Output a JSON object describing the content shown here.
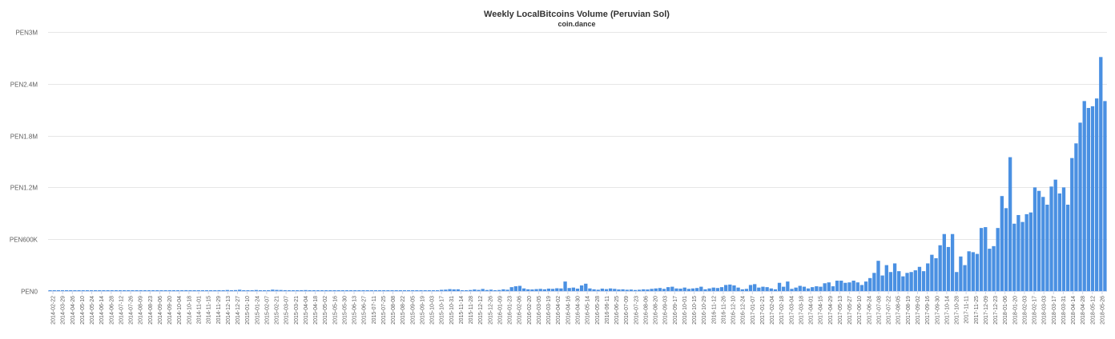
{
  "chart_data": {
    "type": "bar",
    "title": "Weekly LocalBitcoins Volume (Peruvian Sol)",
    "subtitle": "coin.dance",
    "start_date": "2014-02-22",
    "interval_days": 7,
    "ylim": [
      0,
      3000000
    ],
    "yticks": [
      0,
      600000,
      1200000,
      1800000,
      2400000,
      3000000
    ],
    "ytick_labels": [
      "PEN0",
      "PEN600K",
      "PEN1.2M",
      "PEN1.8M",
      "PEN2.4M",
      "PEN3M"
    ],
    "xtick_labels": [
      "2014-02-22",
      "2014-03-29",
      "2014-04-26",
      "2014-05-10",
      "2014-05-24",
      "2014-06-14",
      "2014-06-28",
      "2014-07-12",
      "2014-07-26",
      "2014-08-09",
      "2014-08-23",
      "2014-09-06",
      "2014-09-20",
      "2014-10-04",
      "2014-10-18",
      "2014-11-01",
      "2014-11-15",
      "2014-11-29",
      "2014-12-13",
      "2014-12-27",
      "2015-01-10",
      "2015-01-24",
      "2015-02-07",
      "2015-02-21",
      "2015-03-07",
      "2015-03-21",
      "2015-04-04",
      "2015-04-18",
      "2015-05-02",
      "2015-05-16",
      "2015-05-30",
      "2015-06-13",
      "2015-06-27",
      "2015-07-11",
      "2015-07-25",
      "2015-08-08",
      "2015-08-22",
      "2015-09-05",
      "2015-09-19",
      "2015-10-03",
      "2015-10-17",
      "2015-10-31",
      "2015-11-14",
      "2015-11-28",
      "2015-12-12",
      "2015-12-26",
      "2016-01-09",
      "2016-01-23",
      "2016-02-06",
      "2016-02-20",
      "2016-03-05",
      "2016-03-19",
      "2016-04-02",
      "2016-04-16",
      "2016-04-30",
      "2016-05-14",
      "2016-05-28",
      "2016-06-11",
      "2016-06-25",
      "2016-07-09",
      "2016-07-23",
      "2016-08-06",
      "2016-08-20",
      "2016-09-03",
      "2016-09-17",
      "2016-10-01",
      "2016-10-15",
      "2016-10-29",
      "2016-11-12",
      "2016-11-26",
      "2016-12-10",
      "2016-12-24",
      "2017-01-07",
      "2017-01-21",
      "2017-02-04",
      "2017-02-18",
      "2017-03-04",
      "2017-03-18",
      "2017-04-01",
      "2017-04-15",
      "2017-04-29",
      "2017-05-13",
      "2017-05-27",
      "2017-06-10",
      "2017-06-24",
      "2017-07-08",
      "2017-07-22",
      "2017-08-05",
      "2017-08-19",
      "2017-09-02",
      "2017-09-16",
      "2017-09-30",
      "2017-10-14",
      "2017-10-28",
      "2017-11-11",
      "2017-11-25",
      "2017-12-09",
      "2017-12-23",
      "2018-01-06",
      "2018-01-20",
      "2018-02-03",
      "2018-02-17",
      "2018-03-03",
      "2018-03-17",
      "2018-03-31",
      "2018-04-14",
      "2018-04-28",
      "2018-05-12",
      "2018-05-26"
    ],
    "bar_color": "#4a90e2",
    "values": [
      3000,
      2000,
      2000,
      2000,
      2000,
      3000,
      4000,
      3000,
      3000,
      2000,
      2000,
      4000,
      3000,
      5000,
      4000,
      3000,
      8000,
      6000,
      5000,
      8000,
      6000,
      5000,
      6000,
      7000,
      4000,
      4000,
      5000,
      5000,
      8000,
      6000,
      5000,
      6000,
      4000,
      10000,
      5000,
      5000,
      5000,
      6000,
      7000,
      6000,
      8000,
      10000,
      8000,
      12000,
      7000,
      11000,
      15000,
      9000,
      7000,
      8000,
      12000,
      6000,
      8000,
      10000,
      16000,
      13000,
      12000,
      10000,
      9000,
      9000,
      8000,
      10000,
      11000,
      9000,
      6000,
      5000,
      8000,
      5000,
      6000,
      6000,
      7000,
      6000,
      9000,
      6000,
      6000,
      7000,
      7000,
      6000,
      5000,
      5000,
      7000,
      8000,
      6000,
      6000,
      4000,
      6000,
      7000,
      6000,
      5000,
      5000,
      5000,
      6000,
      7000,
      6000,
      8000,
      14000,
      16000,
      22000,
      19000,
      20000,
      8000,
      8000,
      12000,
      18000,
      13000,
      24000,
      12000,
      16000,
      6000,
      12000,
      20000,
      15000,
      45000,
      55000,
      60000,
      30000,
      20000,
      18000,
      22000,
      25000,
      20000,
      28000,
      25000,
      32000,
      30000,
      110000,
      35000,
      40000,
      28000,
      65000,
      85000,
      30000,
      20000,
      15000,
      28000,
      22000,
      30000,
      25000,
      18000,
      20000,
      15000,
      17000,
      12000,
      15000,
      20000,
      18000,
      25000,
      30000,
      35000,
      25000,
      45000,
      50000,
      30000,
      28000,
      40000,
      25000,
      30000,
      35000,
      50000,
      20000,
      30000,
      40000,
      35000,
      45000,
      70000,
      75000,
      65000,
      40000,
      20000,
      25000,
      70000,
      80000,
      40000,
      50000,
      45000,
      30000,
      20000,
      95000,
      50000,
      110000,
      25000,
      40000,
      60000,
      50000,
      30000,
      45000,
      55000,
      50000,
      90000,
      100000,
      55000,
      120000,
      120000,
      95000,
      100000,
      120000,
      100000,
      70000,
      110000,
      150000,
      210000,
      350000,
      180000,
      300000,
      220000,
      320000,
      230000,
      170000,
      210000,
      220000,
      240000,
      280000,
      230000,
      320000,
      420000,
      380000,
      530000,
      660000,
      510000,
      660000,
      220000,
      400000,
      300000,
      460000,
      450000,
      430000,
      730000,
      740000,
      490000,
      520000,
      730000,
      1100000,
      960000,
      1550000,
      780000,
      880000,
      800000,
      890000,
      910000,
      1200000,
      1160000,
      1090000,
      1000000,
      1210000,
      1290000,
      1130000,
      1200000,
      1000000,
      1540000,
      1710000,
      1950000,
      2200000,
      2120000,
      2140000,
      2230000,
      2710000,
      2200000
    ]
  }
}
